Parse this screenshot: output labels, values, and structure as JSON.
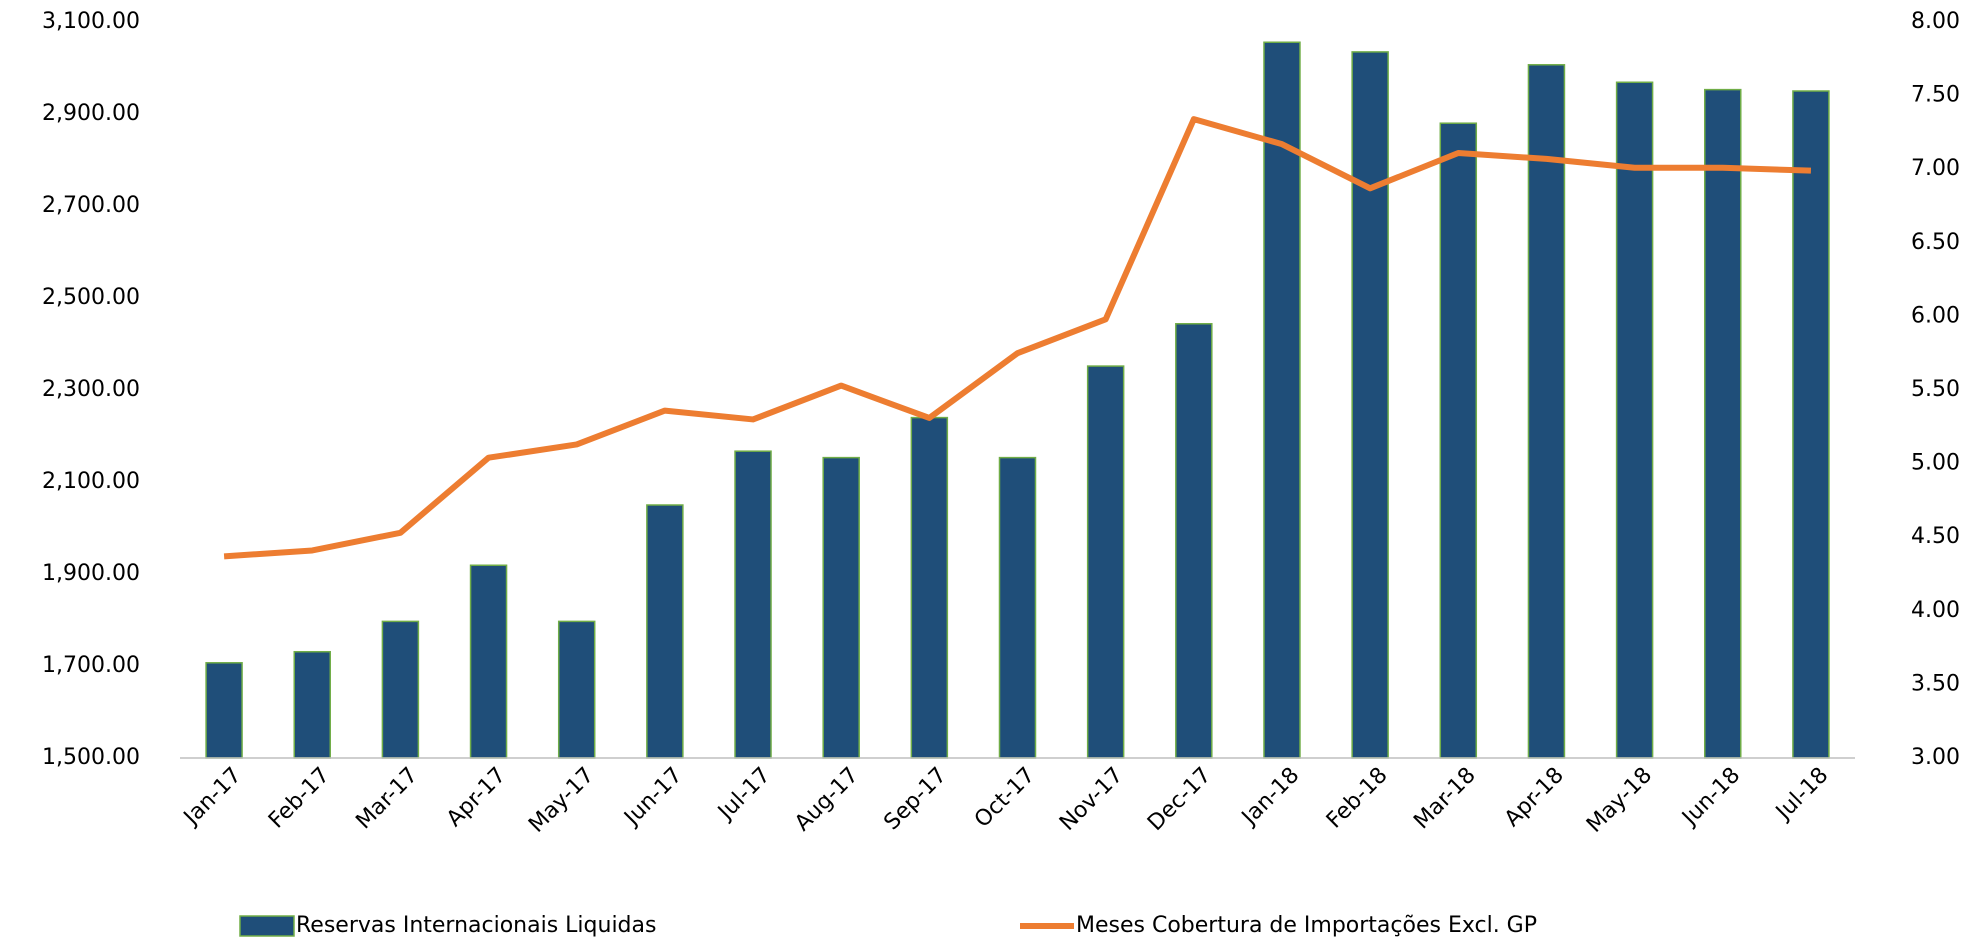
{
  "chart_data": {
    "type": "bar-line",
    "categories": [
      "Jan-17",
      "Feb-17",
      "Mar-17",
      "Apr-17",
      "May-17",
      "Jun-17",
      "Jul-17",
      "Aug-17",
      "Sep-17",
      "Oct-17",
      "Nov-17",
      "Dec-17",
      "Jan-18",
      "Feb-18",
      "Mar-18",
      "Apr-18",
      "May-18",
      "Jun-18",
      "Jul-18"
    ],
    "series": [
      {
        "name": "Reservas Internacionais Liquidas",
        "type": "bar",
        "color": "#1f4e79",
        "edge_color": "#70ad47",
        "values": [
          1707,
          1731,
          1797,
          1919,
          1797,
          2050,
          2167,
          2153,
          2240,
          2153,
          2352,
          2444,
          3056,
          3035,
          2880,
          3007,
          2969,
          2953,
          2950
        ]
      },
      {
        "name": "Meses Cobertura de Importações Excl. GP",
        "type": "line",
        "axis": "y2",
        "color": "#ed7d31",
        "values": [
          4.37,
          4.41,
          4.53,
          5.04,
          5.13,
          5.36,
          5.3,
          5.53,
          5.31,
          5.75,
          5.98,
          7.34,
          7.17,
          6.87,
          7.11,
          7.07,
          7.01,
          7.01,
          6.99
        ]
      }
    ],
    "ylim": [
      1500,
      3100
    ],
    "yticks": [
      {
        "value": 1500,
        "label": "1,500.00"
      },
      {
        "value": 1700,
        "label": "1,700.00"
      },
      {
        "value": 1900,
        "label": "1,900.00"
      },
      {
        "value": 2100,
        "label": "2,100.00"
      },
      {
        "value": 2300,
        "label": "2,300.00"
      },
      {
        "value": 2500,
        "label": "2,500.00"
      },
      {
        "value": 2700,
        "label": "2,700.00"
      },
      {
        "value": 2900,
        "label": "2,900.00"
      },
      {
        "value": 3100,
        "label": "3,100.00"
      }
    ],
    "y2lim": [
      3,
      8
    ],
    "y2ticks": [
      {
        "value": 3,
        "label": "3.00"
      },
      {
        "value": 3.5,
        "label": "3.50"
      },
      {
        "value": 4,
        "label": "4.00"
      },
      {
        "value": 4.5,
        "label": "4.50"
      },
      {
        "value": 5,
        "label": "5.00"
      },
      {
        "value": 5.5,
        "label": "5.50"
      },
      {
        "value": 6,
        "label": "6.00"
      },
      {
        "value": 6.5,
        "label": "6.50"
      },
      {
        "value": 7,
        "label": "7.00"
      },
      {
        "value": 7.5,
        "label": "7.50"
      },
      {
        "value": 8,
        "label": "8.00"
      }
    ],
    "grid": false,
    "legend": "bottom"
  }
}
